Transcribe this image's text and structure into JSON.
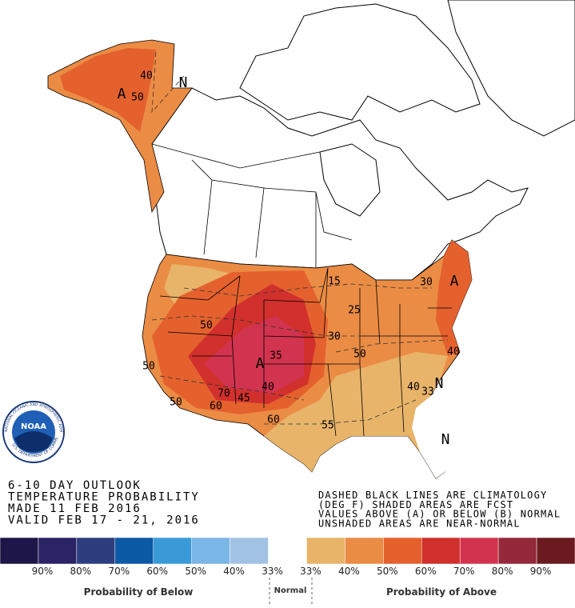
{
  "logo": {
    "name": "NOAA",
    "agency": "NATIONAL OCEANIC AND ATMOSPHERIC ADMINISTRATION",
    "department": "U.S. DEPARTMENT OF COMMERCE"
  },
  "outlook": {
    "lines": [
      "6-10 DAY OUTLOOK",
      "TEMPERATURE PROBABILITY",
      "MADE  11 FEB 2016",
      "VALID  FEB 17 - 21, 2016"
    ]
  },
  "notes": {
    "lines": [
      "DASHED BLACK LINES ARE CLIMATOLOGY",
      "(DEG F) SHADED AREAS ARE FCST",
      "VALUES ABOVE (A) OR BELOW (B) NORMAL",
      "UNSHADED AREAS ARE NEAR-NORMAL"
    ]
  },
  "map_labels": [
    "A",
    "50",
    "40",
    "N",
    "A",
    "35",
    "40",
    "45",
    "50",
    "50",
    "50",
    "60",
    "70",
    "60",
    "55",
    "50",
    "30",
    "25",
    "15",
    "30",
    "A",
    "40",
    "40",
    "33",
    "N",
    "N"
  ],
  "legend": {
    "colors": [
      "#1e1548",
      "#2a2464",
      "#2e3d7e",
      "#0c59a6",
      "#3a9ad8",
      "#7ab6e6",
      "#a2c2e4",
      "#ffffff",
      "#e8b46a",
      "#eb8c45",
      "#e4612d",
      "#d1302c",
      "#d2334e",
      "#93293a",
      "#6b1a1f"
    ],
    "labels": [
      "90%",
      "80%",
      "70%",
      "60%",
      "50%",
      "40%",
      "33%",
      "33%",
      "40%",
      "50%",
      "60%",
      "70%",
      "80%",
      "90%"
    ],
    "below": "Probability of Below",
    "normal": "Normal",
    "above": "Probability of Above"
  }
}
